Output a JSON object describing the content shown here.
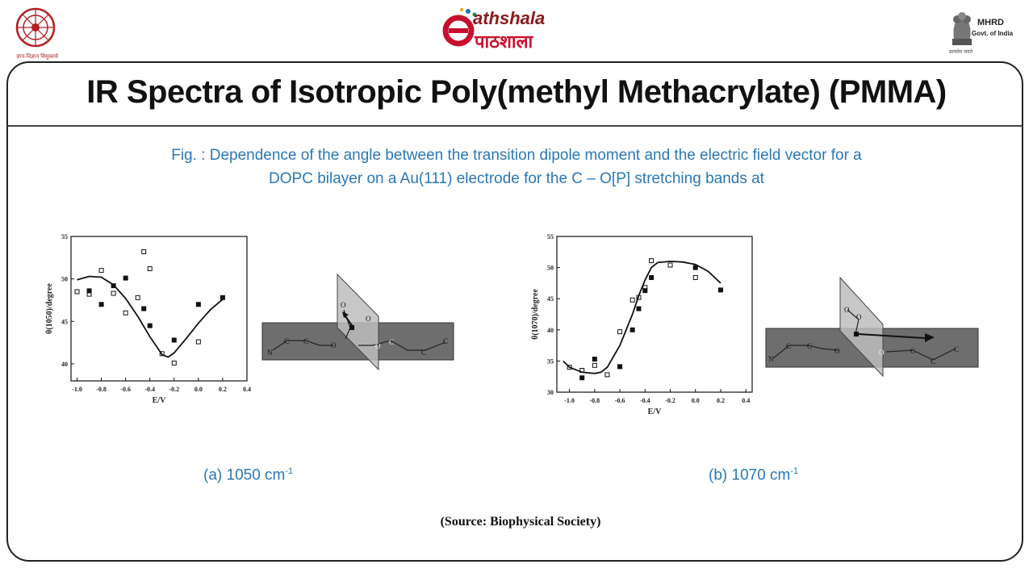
{
  "header": {
    "left_logo_caption": "ज्ञान-विज्ञान विमुक्तये",
    "brand_en": "athshala",
    "brand_hi": "पाठशाला",
    "brand_initial": "e",
    "mhrd_label": "MHRD",
    "mhrd_sub_label": "Govt. of India",
    "mhrd_motto": "सत्यमेव जयते"
  },
  "slide": {
    "title": "IR Spectra of Isotropic Poly(methyl Methacrylate) (PMMA)",
    "caption_line1": "Fig. : Dependence of the angle between the transition dipole moment and the electric field   vector for a",
    "caption_line2": "DOPC bilayer on a Au(111) electrode for the C – O[P] stretching bands at",
    "label_a": "(a) 1050 cm",
    "label_b": "(b) 1070 cm",
    "label_sup": "-1",
    "source": "(Source: Biophysical Society)"
  },
  "diagrams": {
    "chain_atoms_a": [
      "N",
      "C",
      "C",
      "O",
      "O",
      "C",
      "C",
      "C",
      "O",
      "O"
    ],
    "chain_atoms_b": [
      "N",
      "C",
      "C",
      "O",
      "O",
      "C",
      "C",
      "C",
      "O",
      "O"
    ]
  },
  "colors": {
    "caption": "#2a78b4",
    "frame": "#222222",
    "plane_horizontal": "#6e6e6e",
    "plane_vertical": "#bdbdbd"
  },
  "chart_data": [
    {
      "type": "scatter",
      "title": "",
      "xlabel": "E/V",
      "ylabel": "θ(1050)/degree",
      "xlim": [
        -1.05,
        0.4
      ],
      "ylim": [
        38,
        55
      ],
      "xticks": [
        -1.0,
        -0.8,
        -0.6,
        -0.4,
        -0.2,
        0.0,
        0.2,
        0.4
      ],
      "xtick_labels": [
        "-1.0",
        "-0.8",
        "-0.6",
        "-0.4",
        "-0.2",
        "0.0",
        "0.2",
        "0.4"
      ],
      "yticks": [
        40,
        45,
        50,
        55
      ],
      "ytick_labels": [
        "40",
        "45",
        "50",
        "55"
      ],
      "series": [
        {
          "name": "open",
          "marker": "open-square",
          "x": [
            -1.0,
            -0.9,
            -0.8,
            -0.7,
            -0.6,
            -0.5,
            -0.45,
            -0.4,
            -0.3,
            -0.2,
            0.0
          ],
          "y": [
            48.5,
            48.2,
            51.0,
            48.3,
            46.0,
            47.8,
            53.2,
            51.2,
            41.2,
            40.1,
            42.6
          ]
        },
        {
          "name": "filled",
          "marker": "filled-square",
          "x": [
            -0.9,
            -0.8,
            -0.7,
            -0.6,
            -0.45,
            -0.4,
            -0.2,
            0.0,
            0.2
          ],
          "y": [
            48.6,
            47.0,
            49.2,
            50.1,
            46.5,
            44.5,
            42.8,
            47.0,
            47.8
          ]
        },
        {
          "name": "fit",
          "marker": "line",
          "x": [
            -1.0,
            -0.9,
            -0.8,
            -0.7,
            -0.6,
            -0.5,
            -0.4,
            -0.3,
            -0.25,
            -0.2,
            -0.1,
            0.0,
            0.1,
            0.2
          ],
          "y": [
            49.9,
            50.3,
            50.2,
            49.3,
            47.7,
            45.6,
            43.2,
            41.1,
            40.8,
            41.3,
            43.0,
            44.8,
            46.4,
            47.6
          ]
        }
      ]
    },
    {
      "type": "scatter",
      "title": "",
      "xlabel": "E/V",
      "ylabel": "θ(1070)/degree",
      "xlim": [
        -1.1,
        0.45
      ],
      "ylim": [
        30,
        55
      ],
      "xticks": [
        -1.0,
        -0.8,
        -0.6,
        -0.4,
        -0.2,
        0.0,
        0.2,
        0.4
      ],
      "xtick_labels": [
        "-1.0",
        "-0.8",
        "-0.6",
        "-0.4",
        "-0.2",
        "0.0",
        "0.2",
        "0.4"
      ],
      "yticks": [
        30,
        35,
        40,
        45,
        50,
        55
      ],
      "ytick_labels": [
        "30",
        "35",
        "40",
        "45",
        "50",
        "55"
      ],
      "series": [
        {
          "name": "open",
          "marker": "open-square",
          "x": [
            -1.0,
            -0.9,
            -0.8,
            -0.7,
            -0.6,
            -0.5,
            -0.45,
            -0.4,
            -0.35,
            -0.2,
            0.0
          ],
          "y": [
            34.0,
            33.5,
            34.3,
            32.8,
            39.7,
            44.8,
            45.2,
            46.8,
            51.1,
            50.4,
            48.4
          ]
        },
        {
          "name": "filled",
          "marker": "filled-square",
          "x": [
            -0.9,
            -0.8,
            -0.6,
            -0.5,
            -0.45,
            -0.4,
            -0.35,
            0.0,
            0.2
          ],
          "y": [
            32.3,
            35.3,
            34.1,
            40.0,
            43.4,
            46.3,
            48.4,
            50.0,
            46.4
          ]
        },
        {
          "name": "fit",
          "marker": "line",
          "x": [
            -1.05,
            -1.0,
            -0.9,
            -0.8,
            -0.75,
            -0.7,
            -0.6,
            -0.5,
            -0.45,
            -0.4,
            -0.35,
            -0.3,
            -0.2,
            -0.1,
            0.0,
            0.1,
            0.2
          ],
          "y": [
            35.0,
            34.0,
            33.2,
            33.0,
            33.2,
            34.0,
            37.5,
            42.5,
            45.5,
            48.0,
            50.0,
            50.8,
            51.0,
            50.9,
            50.5,
            49.4,
            47.5
          ]
        }
      ]
    }
  ]
}
